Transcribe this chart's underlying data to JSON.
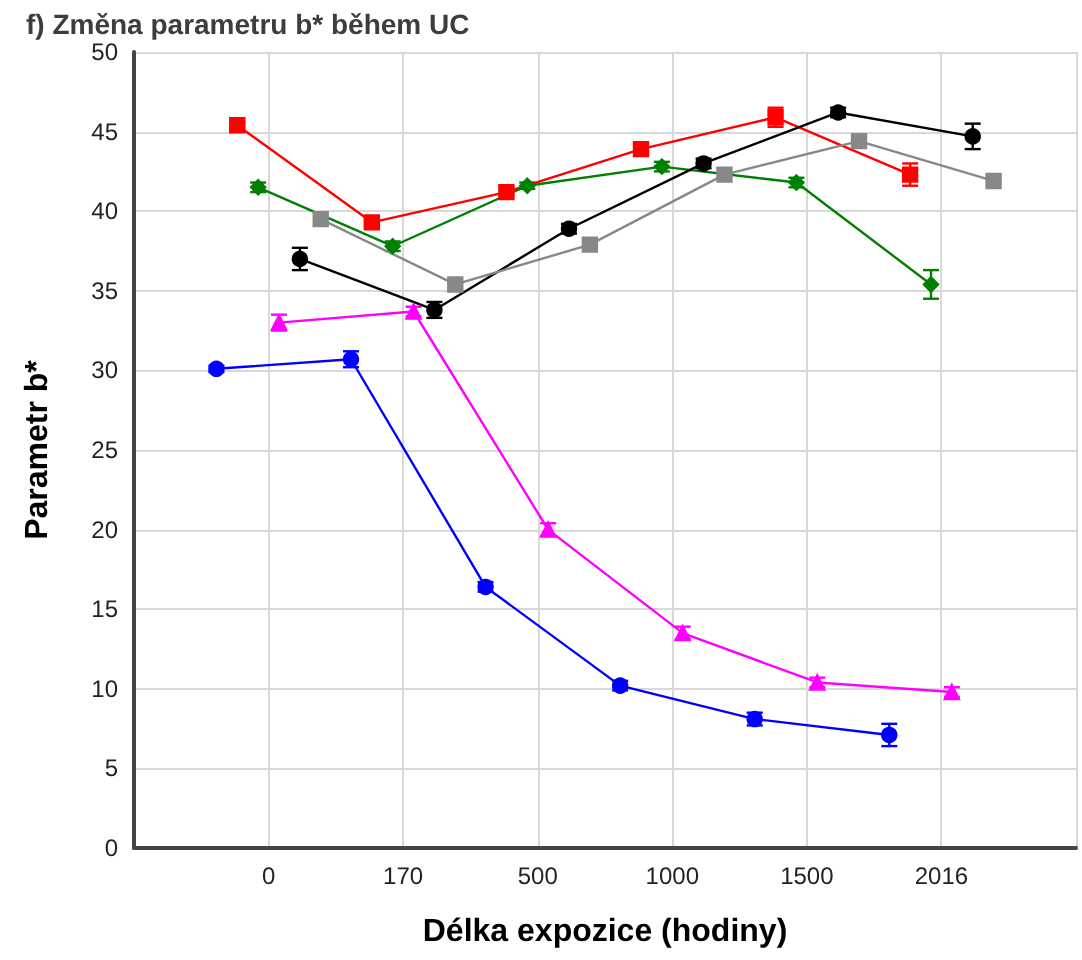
{
  "chart_data": {
    "type": "line",
    "title": "f) Změna parametru b* během UC",
    "xlabel": "Délka expozice (hodiny)",
    "ylabel": "Parametr b*",
    "categories": [
      "0",
      "170",
      "500",
      "1000",
      "1500",
      "2016"
    ],
    "ylim": [
      0,
      50
    ],
    "yticks": [
      0,
      5,
      10,
      15,
      20,
      25,
      30,
      35,
      40,
      45,
      50
    ],
    "grid": true,
    "series": [
      {
        "color": "#0000ff",
        "marker": "circle",
        "values": [
          30.1,
          30.7,
          16.4,
          10.2,
          8.1,
          7.1
        ],
        "errors": [
          0.2,
          0.5,
          0.3,
          0.3,
          0.4,
          0.7
        ]
      },
      {
        "color": "#ff0000",
        "marker": "square",
        "values": [
          45.4,
          39.3,
          41.2,
          43.9,
          45.9,
          42.3
        ],
        "errors": [
          0.2,
          0.2,
          0.2,
          0.4,
          0.6,
          0.7
        ]
      },
      {
        "color": "#008000",
        "marker": "diamond",
        "values": [
          41.5,
          37.8,
          41.6,
          42.8,
          41.8,
          35.4
        ],
        "errors": [
          0.3,
          0.3,
          0.2,
          0.3,
          0.3,
          0.9
        ]
      },
      {
        "color": "#ff00ff",
        "marker": "triangle",
        "values": [
          33.0,
          33.7,
          20.0,
          13.5,
          10.4,
          9.8
        ],
        "errors": [
          0.5,
          0.3,
          0.4,
          0.4,
          0.3,
          0.3
        ]
      },
      {
        "color": "#000000",
        "marker": "circle",
        "values": [
          37.0,
          33.8,
          38.9,
          43.0,
          46.2,
          44.7
        ],
        "errors": [
          0.7,
          0.5,
          0.3,
          0.3,
          0.3,
          0.8
        ]
      },
      {
        "color": "#888888",
        "marker": "square",
        "values": [
          39.5,
          35.4,
          37.9,
          42.3,
          44.4,
          41.9
        ]
      }
    ]
  }
}
